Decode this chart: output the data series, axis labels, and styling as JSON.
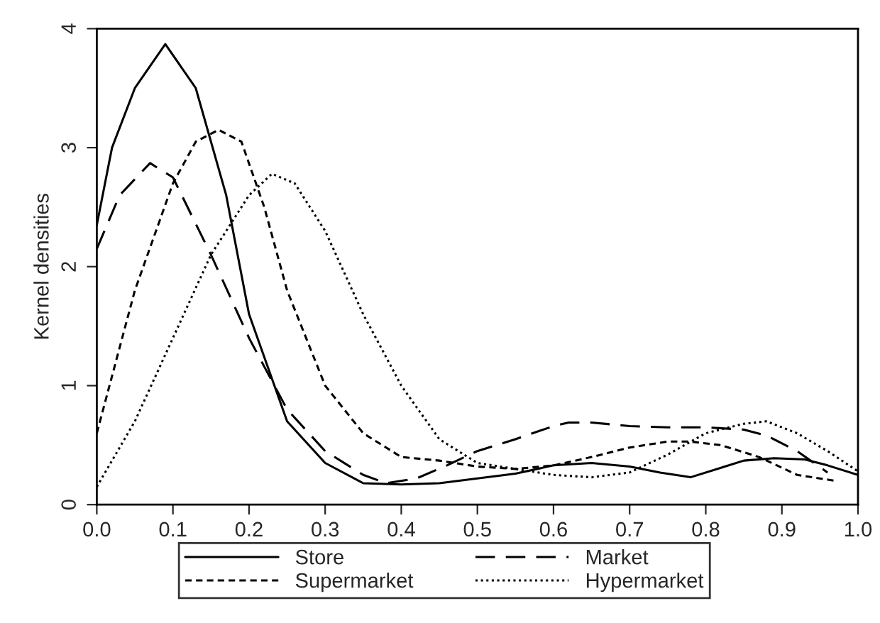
{
  "chart_data": {
    "type": "line",
    "ylabel": "Kernel densities",
    "xlim": [
      0,
      1
    ],
    "ylim": [
      0,
      4
    ],
    "xticks": [
      {
        "value": 0,
        "label": "0.0"
      },
      0.1,
      0.2,
      0.3,
      0.4,
      0.5,
      0.6,
      0.7,
      0.8,
      0.9,
      {
        "value": 1,
        "label": "1.0"
      }
    ],
    "yticks": [
      0,
      1,
      2,
      3,
      4
    ],
    "grid": false,
    "legend": "bottom",
    "marker": "none",
    "series": [
      {
        "name": "Store",
        "color": "#000000",
        "line_style": "solid",
        "x": [
          0,
          0.02,
          0.05,
          0.09,
          0.13,
          0.17,
          0.2,
          0.25,
          0.3,
          0.35,
          0.4,
          0.45,
          0.5,
          0.55,
          0.6,
          0.65,
          0.7,
          0.74,
          0.78,
          0.82,
          0.85,
          0.89,
          0.93,
          0.96,
          1.0
        ],
        "values": [
          2.35,
          3.0,
          3.5,
          3.87,
          3.5,
          2.6,
          1.6,
          0.7,
          0.35,
          0.18,
          0.17,
          0.18,
          0.22,
          0.26,
          0.33,
          0.35,
          0.32,
          0.27,
          0.23,
          0.31,
          0.37,
          0.39,
          0.38,
          0.33,
          0.25
        ]
      },
      {
        "name": "Market",
        "color": "#000000",
        "line_style": "dashed",
        "x": [
          0,
          0.03,
          0.07,
          0.1,
          0.15,
          0.2,
          0.25,
          0.3,
          0.35,
          0.38,
          0.42,
          0.46,
          0.5,
          0.55,
          0.6,
          0.62,
          0.65,
          0.7,
          0.75,
          0.8,
          0.85,
          0.88,
          0.92,
          0.96
        ],
        "values": [
          2.15,
          2.6,
          2.87,
          2.75,
          2.1,
          1.4,
          0.8,
          0.45,
          0.25,
          0.18,
          0.22,
          0.33,
          0.45,
          0.55,
          0.66,
          0.69,
          0.69,
          0.66,
          0.65,
          0.65,
          0.63,
          0.58,
          0.45,
          0.27
        ]
      },
      {
        "name": "Supermarket",
        "color": "#000000",
        "line_style": "short dashed",
        "x": [
          0,
          0.05,
          0.1,
          0.13,
          0.16,
          0.19,
          0.22,
          0.25,
          0.3,
          0.35,
          0.4,
          0.45,
          0.5,
          0.55,
          0.6,
          0.65,
          0.7,
          0.75,
          0.78,
          0.82,
          0.87,
          0.92,
          0.97
        ],
        "values": [
          0.6,
          1.8,
          2.7,
          3.05,
          3.15,
          3.05,
          2.5,
          1.8,
          1.0,
          0.6,
          0.4,
          0.37,
          0.32,
          0.3,
          0.33,
          0.4,
          0.48,
          0.53,
          0.53,
          0.5,
          0.4,
          0.25,
          0.2
        ]
      },
      {
        "name": "Hypermarket",
        "color": "#000000",
        "line_style": "dotted",
        "x": [
          0,
          0.05,
          0.1,
          0.15,
          0.2,
          0.23,
          0.26,
          0.3,
          0.35,
          0.4,
          0.45,
          0.5,
          0.55,
          0.6,
          0.65,
          0.7,
          0.75,
          0.8,
          0.85,
          0.88,
          0.92,
          0.96,
          1.0
        ],
        "values": [
          0.15,
          0.7,
          1.4,
          2.1,
          2.6,
          2.78,
          2.7,
          2.3,
          1.6,
          1.0,
          0.55,
          0.35,
          0.3,
          0.25,
          0.23,
          0.27,
          0.42,
          0.6,
          0.68,
          0.7,
          0.6,
          0.45,
          0.28
        ]
      }
    ]
  }
}
